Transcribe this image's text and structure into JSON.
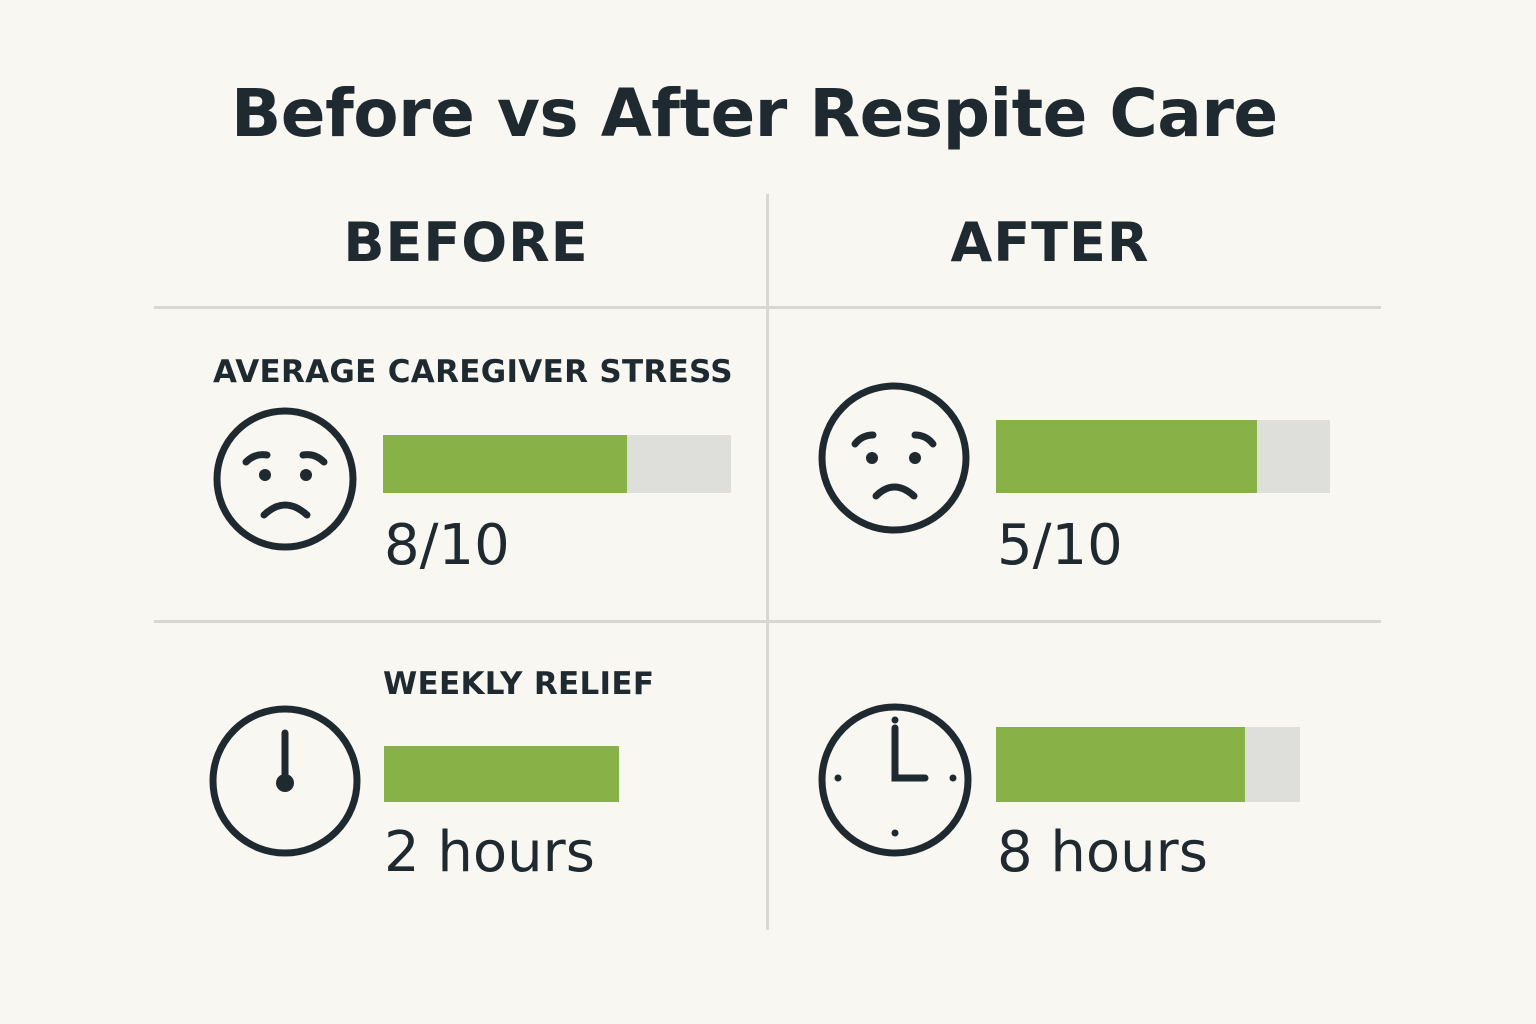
{
  "title": "Before vs After Respite Care",
  "columns": {
    "before": "BEFORE",
    "after": "AFTER"
  },
  "colors": {
    "bar_fill": "#88b147",
    "bar_track": "#dededa",
    "ink": "#1f2a30",
    "divider": "#d8d8d3",
    "background": "#f8f7f2"
  },
  "icons": {
    "stress_before": "worried-face-icon",
    "stress_after": "frowning-face-icon",
    "relief_before": "clock-icon",
    "relief_after": "clock-icon"
  },
  "chart_data": [
    {
      "type": "bar",
      "label": "AVERAGE CAREGIVER STRESS",
      "categories": [
        "BEFORE",
        "AFTER"
      ],
      "values": [
        8,
        5
      ],
      "max": 10,
      "value_labels": [
        "8/10",
        "5/10"
      ],
      "fill_fraction": [
        0.7,
        0.78
      ]
    },
    {
      "type": "bar",
      "label": "WEEKLY RELIEF",
      "categories": [
        "BEFORE",
        "AFTER"
      ],
      "values": [
        2,
        8
      ],
      "value_labels": [
        "2 hours",
        "8 hours"
      ],
      "fill_fraction": [
        1.0,
        0.82
      ]
    }
  ]
}
